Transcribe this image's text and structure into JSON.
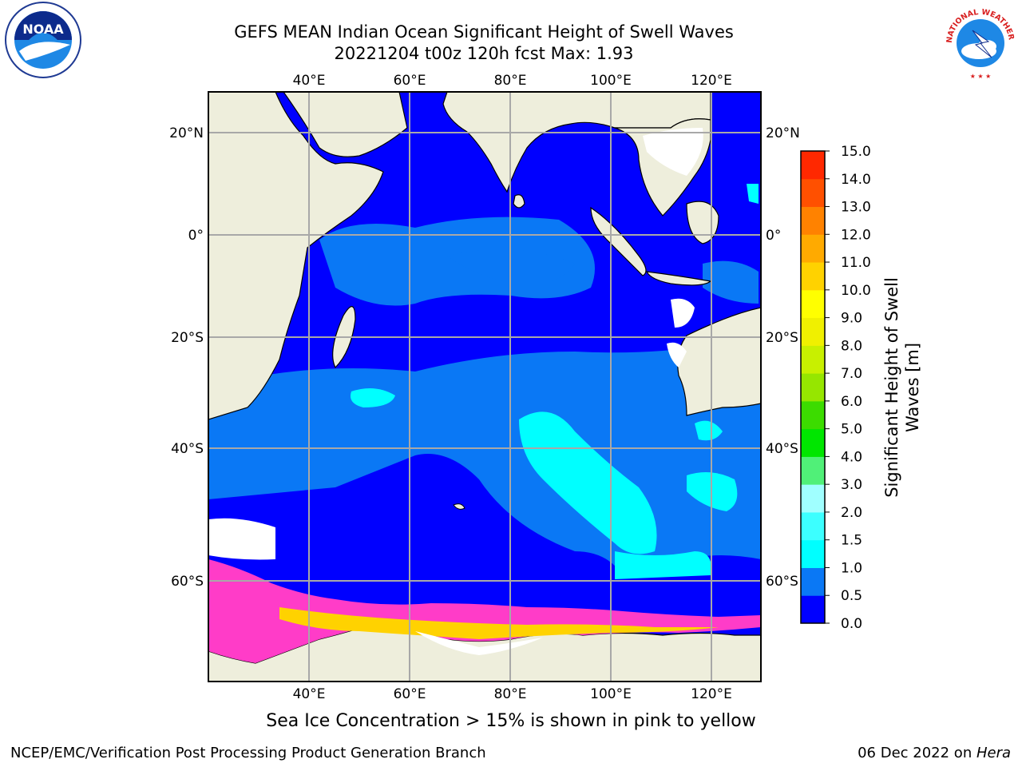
{
  "title": {
    "line1": "GEFS MEAN Indian Ocean Significant Height of Swell Waves",
    "line2": "20221204 t00z 120h fcst   Max: 1.93"
  },
  "map": {
    "lon_ticks_top": [
      "40°E",
      "60°E",
      "80°E",
      "100°E",
      "120°E"
    ],
    "lon_ticks_bottom": [
      "40°E",
      "60°E",
      "80°E",
      "100°E",
      "120°E"
    ],
    "lat_ticks_left": [
      "20°N",
      "0°",
      "20°S",
      "40°S",
      "60°S"
    ],
    "lat_ticks_right": [
      "20°N",
      "0°",
      "20°S",
      "40°S",
      "60°S"
    ]
  },
  "colorbar": {
    "label_line1": "Significant Height of Swell",
    "label_line2": "Waves [m]",
    "tick_labels": [
      "0.0",
      "0.5",
      "1.0",
      "1.5",
      "2.0",
      "3.0",
      "4.0",
      "5.0",
      "6.0",
      "7.0",
      "8.0",
      "9.0",
      "10.0",
      "11.0",
      "12.0",
      "13.0",
      "14.0",
      "15.0"
    ],
    "colors": [
      "#0000ff",
      "#0a78f5",
      "#00ffff",
      "#3cffff",
      "#a0ffff",
      "#50f078",
      "#00e600",
      "#3cdc00",
      "#96e600",
      "#c8f000",
      "#f0f000",
      "#ffff00",
      "#ffd200",
      "#ffaa00",
      "#ff8200",
      "#ff5000",
      "#ff2800",
      "#ff0000"
    ]
  },
  "legend_colors": {
    "land": "#eeeedc",
    "swell_low": "#0000ff",
    "swell_mid": "#0a78f5",
    "swell_high": "#00ffff",
    "sea_ice": "#ff3cc8",
    "no_data": "#ffffff"
  },
  "logos": {
    "noaa_text": "NOAA",
    "nws_text": "NATIONAL WEATHER SERVICE"
  },
  "footer": {
    "note": "Sea Ice Concentration > 15% is shown in pink to yellow",
    "credit": "NCEP/EMC/Verification Post Processing Product Generation Branch",
    "date_prefix": "06 Dec 2022 on ",
    "date_host": "Hera"
  }
}
